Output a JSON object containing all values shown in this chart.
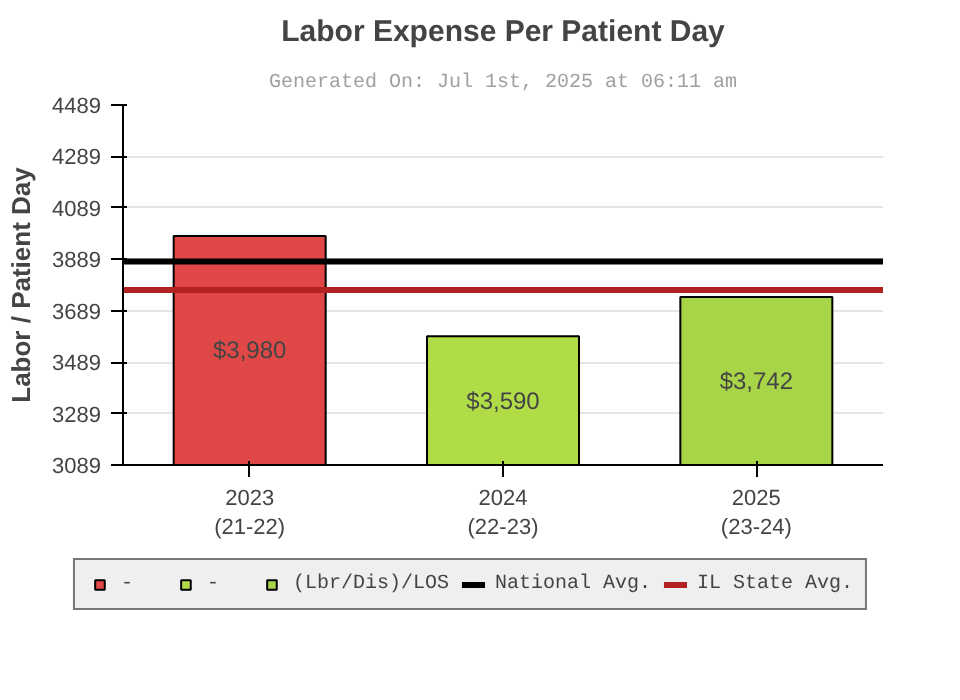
{
  "chart_data": {
    "type": "bar",
    "title": "Labor Expense Per Patient Day",
    "ylabel": "Labor / Patient Day",
    "annotations": [
      "Generated On: Jul 1st, 2025 at 06:11 am"
    ],
    "categories": [
      "2023\n(21-22)",
      "2024\n(22-23)",
      "2025\n(23-24)"
    ],
    "series": [
      {
        "name": "-",
        "color": "#e04848",
        "values": [
          3980,
          null,
          null
        ],
        "value_labels": [
          "$3,980",
          null,
          null
        ]
      },
      {
        "name": "-",
        "color": "#b0dc48",
        "values": [
          null,
          3590,
          null
        ],
        "value_labels": [
          null,
          "$3,590",
          null
        ]
      },
      {
        "name": "(Lbr/Dis)/LOS",
        "color": "#a8d448",
        "values": [
          null,
          null,
          3742
        ],
        "value_labels": [
          null,
          null,
          "$3,742"
        ]
      }
    ],
    "ylim": [
      3089,
      4489
    ],
    "yticks": [
      3089,
      3289,
      3489,
      3689,
      3889,
      4089,
      4289,
      4489
    ],
    "grid": "y",
    "legend": "bottom",
    "ref_lines": [
      {
        "axis": "y",
        "value": 3880,
        "label": "National Avg.",
        "color": "#000000"
      },
      {
        "axis": "y",
        "value": 3770,
        "label": "IL State Avg.",
        "color": "#b22222"
      }
    ]
  }
}
